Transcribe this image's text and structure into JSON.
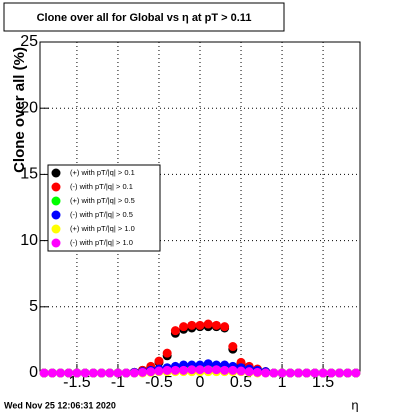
{
  "chart_data": {
    "type": "scatter",
    "title": "Clone  over all for Global vs   η at pT > 0.11",
    "x_label": "η",
    "y_label": "Clone  over all (%)",
    "footer": "Wed Nov 25 12:06:31 2020",
    "xlim": [
      -1.95,
      1.95
    ],
    "ylim": [
      0,
      25
    ],
    "xticks": [
      -1.5,
      -1,
      -0.5,
      0,
      0.5,
      1,
      1.5
    ],
    "yticks": [
      0,
      5,
      10,
      15,
      20,
      25
    ],
    "grid": true,
    "legend": "left",
    "x": [
      -1.9,
      -1.8,
      -1.7,
      -1.6,
      -1.5,
      -1.4,
      -1.3,
      -1.2,
      -1.1,
      -1.0,
      -0.9,
      -0.8,
      -0.7,
      -0.6,
      -0.5,
      -0.4,
      -0.3,
      -0.2,
      -0.1,
      0,
      0.1,
      0.2,
      0.3,
      0.4,
      0.5,
      0.6,
      0.7,
      0.8,
      0.9,
      1.0,
      1.1,
      1.2,
      1.3,
      1.4,
      1.5,
      1.6,
      1.7,
      1.8,
      1.9
    ],
    "series": [
      {
        "name": "(+) with pT/|q| > 0.1",
        "color": "#000000",
        "values": [
          0,
          0,
          0,
          0,
          0,
          0,
          0,
          0,
          0,
          0,
          0,
          0.05,
          0.2,
          0.4,
          0.8,
          1.3,
          3.0,
          3.3,
          3.4,
          3.5,
          3.5,
          3.5,
          3.4,
          1.8,
          0.7,
          0.4,
          0.2,
          0.1,
          0,
          0,
          0,
          0,
          0,
          0,
          0,
          0,
          0,
          0,
          0
        ]
      },
      {
        "name": "(-) with pT/|q| > 0.1",
        "color": "#ff0000",
        "values": [
          0,
          0,
          0,
          0,
          0,
          0,
          0,
          0,
          0,
          0,
          0,
          0.05,
          0.2,
          0.5,
          0.9,
          1.5,
          3.2,
          3.5,
          3.6,
          3.6,
          3.7,
          3.6,
          3.5,
          2.0,
          0.8,
          0.5,
          0.3,
          0.1,
          0,
          0,
          0,
          0,
          0,
          0,
          0,
          0,
          0,
          0,
          0
        ]
      },
      {
        "name": "(+) with pT/|q| > 0.5",
        "color": "#00ff00",
        "values": [
          0,
          0,
          0,
          0,
          0,
          0,
          0,
          0,
          0,
          0,
          0,
          0,
          0.05,
          0.1,
          0.2,
          0.3,
          0.4,
          0.5,
          0.5,
          0.5,
          0.6,
          0.5,
          0.5,
          0.4,
          0.3,
          0.2,
          0.1,
          0.05,
          0,
          0,
          0,
          0,
          0,
          0,
          0,
          0,
          0,
          0,
          0
        ]
      },
      {
        "name": "(-) with pT/|q| > 0.5",
        "color": "#0000ff",
        "values": [
          0,
          0,
          0,
          0,
          0,
          0,
          0,
          0,
          0,
          0,
          0,
          0.05,
          0.1,
          0.2,
          0.3,
          0.4,
          0.5,
          0.6,
          0.6,
          0.6,
          0.7,
          0.6,
          0.6,
          0.5,
          0.4,
          0.3,
          0.2,
          0.1,
          0,
          0,
          0,
          0,
          0,
          0,
          0,
          0,
          0,
          0,
          0
        ]
      },
      {
        "name": "(+) with pT/|q| > 1.0",
        "color": "#ffff00",
        "values": [
          0,
          0,
          0,
          0,
          0,
          0,
          0,
          0,
          0,
          0,
          0,
          0,
          0,
          0.05,
          0.1,
          0.1,
          0.1,
          0.1,
          0.1,
          0.1,
          0.1,
          0.1,
          0.1,
          0.1,
          0.1,
          0.05,
          0,
          0,
          0,
          0,
          0,
          0,
          0,
          0,
          0,
          0,
          0,
          0,
          0
        ]
      },
      {
        "name": "(-) with pT/|q| > 1.0",
        "color": "#ff00ff",
        "values": [
          0,
          0,
          0,
          0,
          0,
          0,
          0,
          0,
          0,
          0,
          0,
          0,
          0.05,
          0.1,
          0.15,
          0.2,
          0.2,
          0.2,
          0.25,
          0.25,
          0.25,
          0.25,
          0.2,
          0.2,
          0.15,
          0.1,
          0.05,
          0,
          0,
          0,
          0,
          0,
          0,
          0,
          0,
          0,
          0,
          0,
          0
        ]
      }
    ]
  }
}
